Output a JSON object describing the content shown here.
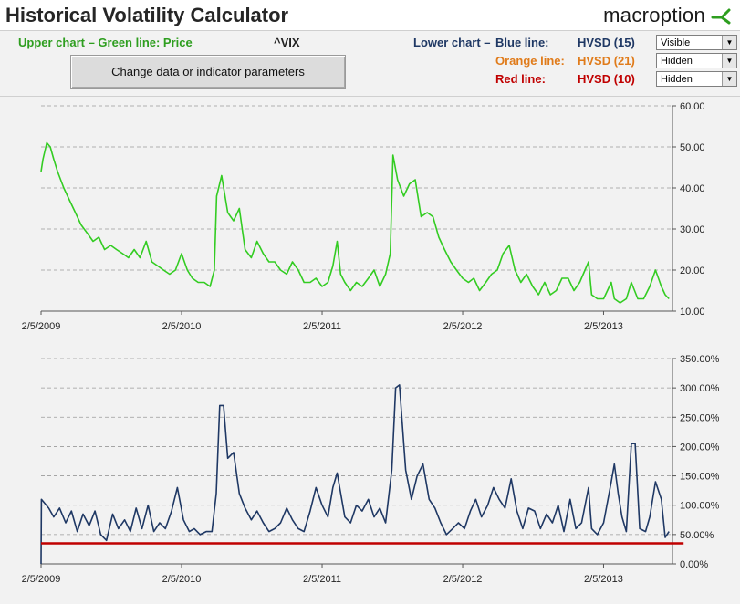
{
  "header": {
    "title": "Historical Volatility Calculator",
    "logo_text": "macroption"
  },
  "controls": {
    "upper_label": "Upper chart – Green line: Price",
    "ticker": "^VIX",
    "button_label": "Change data or indicator parameters",
    "lower_label": "Lower chart –",
    "lines": [
      {
        "label": "Blue line:",
        "indicator": "HVSD (15)",
        "state": "Visible",
        "color": "#1f3864"
      },
      {
        "label": "Orange line:",
        "indicator": "HVSD (21)",
        "state": "Hidden",
        "color": "#e07b1a"
      },
      {
        "label": "Red line:",
        "indicator": "HVSD (10)",
        "state": "Hidden",
        "color": "#c00000"
      }
    ],
    "upper_color": "#2e9e1f"
  },
  "chart_data": [
    {
      "type": "line",
      "series": [
        {
          "color": "#33cc22",
          "points": [
            [
              "2009-02-05",
              44
            ],
            [
              "2009-02-10",
              47
            ],
            [
              "2009-02-20",
              51
            ],
            [
              "2009-03-01",
              50
            ],
            [
              "2009-03-10",
              47
            ],
            [
              "2009-03-20",
              44
            ],
            [
              "2009-04-05",
              40
            ],
            [
              "2009-04-20",
              37
            ],
            [
              "2009-05-05",
              34
            ],
            [
              "2009-05-20",
              31
            ],
            [
              "2009-06-05",
              29
            ],
            [
              "2009-06-20",
              27
            ],
            [
              "2009-07-05",
              28
            ],
            [
              "2009-07-20",
              25
            ],
            [
              "2009-08-05",
              26
            ],
            [
              "2009-08-20",
              25
            ],
            [
              "2009-09-05",
              24
            ],
            [
              "2009-09-20",
              23
            ],
            [
              "2009-10-05",
              25
            ],
            [
              "2009-10-20",
              23
            ],
            [
              "2009-11-05",
              27
            ],
            [
              "2009-11-20",
              22
            ],
            [
              "2009-12-05",
              21
            ],
            [
              "2009-12-20",
              20
            ],
            [
              "2010-01-05",
              19
            ],
            [
              "2010-01-20",
              20
            ],
            [
              "2010-02-05",
              24
            ],
            [
              "2010-02-20",
              20
            ],
            [
              "2010-03-05",
              18
            ],
            [
              "2010-03-20",
              17
            ],
            [
              "2010-04-05",
              17
            ],
            [
              "2010-04-20",
              16
            ],
            [
              "2010-05-01",
              20
            ],
            [
              "2010-05-07",
              38
            ],
            [
              "2010-05-20",
              43
            ],
            [
              "2010-06-05",
              34
            ],
            [
              "2010-06-20",
              32
            ],
            [
              "2010-07-05",
              35
            ],
            [
              "2010-07-20",
              25
            ],
            [
              "2010-08-05",
              23
            ],
            [
              "2010-08-20",
              27
            ],
            [
              "2010-09-05",
              24
            ],
            [
              "2010-09-20",
              22
            ],
            [
              "2010-10-05",
              22
            ],
            [
              "2010-10-20",
              20
            ],
            [
              "2010-11-05",
              19
            ],
            [
              "2010-11-20",
              22
            ],
            [
              "2010-12-05",
              20
            ],
            [
              "2010-12-20",
              17
            ],
            [
              "2011-01-05",
              17
            ],
            [
              "2011-01-20",
              18
            ],
            [
              "2011-02-05",
              16
            ],
            [
              "2011-02-20",
              17
            ],
            [
              "2011-03-05",
              21
            ],
            [
              "2011-03-16",
              27
            ],
            [
              "2011-03-25",
              19
            ],
            [
              "2011-04-05",
              17
            ],
            [
              "2011-04-20",
              15
            ],
            [
              "2011-05-05",
              17
            ],
            [
              "2011-05-20",
              16
            ],
            [
              "2011-06-05",
              18
            ],
            [
              "2011-06-20",
              20
            ],
            [
              "2011-07-05",
              16
            ],
            [
              "2011-07-20",
              19
            ],
            [
              "2011-08-01",
              24
            ],
            [
              "2011-08-08",
              48
            ],
            [
              "2011-08-20",
              42
            ],
            [
              "2011-09-05",
              38
            ],
            [
              "2011-09-20",
              41
            ],
            [
              "2011-10-05",
              42
            ],
            [
              "2011-10-20",
              33
            ],
            [
              "2011-11-05",
              34
            ],
            [
              "2011-11-20",
              33
            ],
            [
              "2011-12-05",
              28
            ],
            [
              "2011-12-20",
              25
            ],
            [
              "2012-01-05",
              22
            ],
            [
              "2012-01-20",
              20
            ],
            [
              "2012-02-05",
              18
            ],
            [
              "2012-02-20",
              17
            ],
            [
              "2012-03-05",
              18
            ],
            [
              "2012-03-20",
              15
            ],
            [
              "2012-04-05",
              17
            ],
            [
              "2012-04-20",
              19
            ],
            [
              "2012-05-05",
              20
            ],
            [
              "2012-05-20",
              24
            ],
            [
              "2012-06-05",
              26
            ],
            [
              "2012-06-20",
              20
            ],
            [
              "2012-07-05",
              17
            ],
            [
              "2012-07-20",
              19
            ],
            [
              "2012-08-05",
              16
            ],
            [
              "2012-08-20",
              14
            ],
            [
              "2012-09-05",
              17
            ],
            [
              "2012-09-20",
              14
            ],
            [
              "2012-10-05",
              15
            ],
            [
              "2012-10-20",
              18
            ],
            [
              "2012-11-05",
              18
            ],
            [
              "2012-11-20",
              15
            ],
            [
              "2012-12-05",
              17
            ],
            [
              "2012-12-28",
              22
            ],
            [
              "2013-01-05",
              14
            ],
            [
              "2013-01-20",
              13
            ],
            [
              "2013-02-05",
              13
            ],
            [
              "2013-02-25",
              17
            ],
            [
              "2013-03-05",
              13
            ],
            [
              "2013-03-20",
              12
            ],
            [
              "2013-04-05",
              13
            ],
            [
              "2013-04-18",
              17
            ],
            [
              "2013-05-05",
              13
            ],
            [
              "2013-05-20",
              13
            ],
            [
              "2013-06-05",
              16
            ],
            [
              "2013-06-20",
              20
            ],
            [
              "2013-07-05",
              16
            ],
            [
              "2013-07-15",
              14
            ],
            [
              "2013-07-25",
              13
            ]
          ]
        }
      ],
      "ylim": [
        10,
        60
      ],
      "yticks": [
        "60.00",
        "50.00",
        "40.00",
        "30.00",
        "20.00",
        "10.00"
      ],
      "xticks": [
        "2/5/2009",
        "2/5/2010",
        "2/5/2011",
        "2/5/2012",
        "2/5/2013"
      ],
      "grid": "horizontal-dashed"
    },
    {
      "type": "line",
      "series": [
        {
          "color": "#1f3864",
          "points": [
            [
              "2009-02-05",
              0
            ],
            [
              "2009-02-06",
              110
            ],
            [
              "2009-02-25",
              95
            ],
            [
              "2009-03-10",
              80
            ],
            [
              "2009-03-25",
              95
            ],
            [
              "2009-04-10",
              70
            ],
            [
              "2009-04-25",
              90
            ],
            [
              "2009-05-10",
              55
            ],
            [
              "2009-05-25",
              85
            ],
            [
              "2009-06-10",
              65
            ],
            [
              "2009-06-25",
              90
            ],
            [
              "2009-07-10",
              50
            ],
            [
              "2009-07-25",
              40
            ],
            [
              "2009-08-10",
              85
            ],
            [
              "2009-08-25",
              60
            ],
            [
              "2009-09-10",
              75
            ],
            [
              "2009-09-25",
              55
            ],
            [
              "2009-10-10",
              95
            ],
            [
              "2009-10-25",
              60
            ],
            [
              "2009-11-10",
              100
            ],
            [
              "2009-11-25",
              55
            ],
            [
              "2009-12-10",
              70
            ],
            [
              "2009-12-25",
              60
            ],
            [
              "2010-01-10",
              90
            ],
            [
              "2010-01-25",
              130
            ],
            [
              "2010-02-10",
              75
            ],
            [
              "2010-02-25",
              55
            ],
            [
              "2010-03-10",
              60
            ],
            [
              "2010-03-25",
              50
            ],
            [
              "2010-04-10",
              55
            ],
            [
              "2010-04-25",
              55
            ],
            [
              "2010-05-06",
              120
            ],
            [
              "2010-05-15",
              270
            ],
            [
              "2010-05-25",
              270
            ],
            [
              "2010-06-05",
              180
            ],
            [
              "2010-06-20",
              190
            ],
            [
              "2010-07-05",
              120
            ],
            [
              "2010-07-20",
              95
            ],
            [
              "2010-08-05",
              75
            ],
            [
              "2010-08-20",
              90
            ],
            [
              "2010-09-05",
              70
            ],
            [
              "2010-09-20",
              55
            ],
            [
              "2010-10-05",
              60
            ],
            [
              "2010-10-20",
              70
            ],
            [
              "2010-11-05",
              95
            ],
            [
              "2010-11-20",
              75
            ],
            [
              "2010-12-05",
              60
            ],
            [
              "2010-12-20",
              55
            ],
            [
              "2011-01-05",
              90
            ],
            [
              "2011-01-20",
              130
            ],
            [
              "2011-02-05",
              100
            ],
            [
              "2011-02-20",
              80
            ],
            [
              "2011-03-05",
              130
            ],
            [
              "2011-03-16",
              155
            ],
            [
              "2011-04-05",
              80
            ],
            [
              "2011-04-20",
              70
            ],
            [
              "2011-05-05",
              100
            ],
            [
              "2011-05-20",
              90
            ],
            [
              "2011-06-05",
              110
            ],
            [
              "2011-06-20",
              80
            ],
            [
              "2011-07-05",
              95
            ],
            [
              "2011-07-20",
              70
            ],
            [
              "2011-08-05",
              160
            ],
            [
              "2011-08-15",
              300
            ],
            [
              "2011-08-25",
              305
            ],
            [
              "2011-09-10",
              160
            ],
            [
              "2011-09-25",
              110
            ],
            [
              "2011-10-10",
              150
            ],
            [
              "2011-10-25",
              170
            ],
            [
              "2011-11-10",
              110
            ],
            [
              "2011-11-25",
              95
            ],
            [
              "2011-12-10",
              70
            ],
            [
              "2011-12-25",
              50
            ],
            [
              "2012-01-10",
              60
            ],
            [
              "2012-01-25",
              70
            ],
            [
              "2012-02-10",
              60
            ],
            [
              "2012-02-25",
              90
            ],
            [
              "2012-03-10",
              110
            ],
            [
              "2012-03-25",
              80
            ],
            [
              "2012-04-10",
              100
            ],
            [
              "2012-04-25",
              130
            ],
            [
              "2012-05-10",
              110
            ],
            [
              "2012-05-25",
              95
            ],
            [
              "2012-06-10",
              145
            ],
            [
              "2012-06-25",
              90
            ],
            [
              "2012-07-10",
              60
            ],
            [
              "2012-07-25",
              95
            ],
            [
              "2012-08-10",
              90
            ],
            [
              "2012-08-25",
              60
            ],
            [
              "2012-09-10",
              85
            ],
            [
              "2012-09-25",
              70
            ],
            [
              "2012-10-10",
              100
            ],
            [
              "2012-10-25",
              55
            ],
            [
              "2012-11-10",
              110
            ],
            [
              "2012-11-25",
              60
            ],
            [
              "2012-12-10",
              70
            ],
            [
              "2012-12-28",
              130
            ],
            [
              "2013-01-05",
              60
            ],
            [
              "2013-01-20",
              50
            ],
            [
              "2013-02-05",
              70
            ],
            [
              "2013-02-25",
              140
            ],
            [
              "2013-03-05",
              170
            ],
            [
              "2013-03-15",
              120
            ],
            [
              "2013-03-25",
              80
            ],
            [
              "2013-04-05",
              55
            ],
            [
              "2013-04-18",
              205
            ],
            [
              "2013-04-28",
              205
            ],
            [
              "2013-05-10",
              60
            ],
            [
              "2013-05-25",
              55
            ],
            [
              "2013-06-05",
              80
            ],
            [
              "2013-06-20",
              140
            ],
            [
              "2013-07-05",
              110
            ],
            [
              "2013-07-15",
              45
            ],
            [
              "2013-07-25",
              55
            ]
          ]
        },
        {
          "color": "#c00000",
          "points": [
            [
              "2009-02-05",
              35
            ],
            [
              "2013-09-01",
              35
            ]
          ]
        }
      ],
      "ylim": [
        0,
        350
      ],
      "yticks": [
        "350.00%",
        "300.00%",
        "250.00%",
        "200.00%",
        "150.00%",
        "100.00%",
        "50.00%",
        "0.00%"
      ],
      "xticks": [
        "2/5/2009",
        "2/5/2010",
        "2/5/2011",
        "2/5/2012",
        "2/5/2013"
      ],
      "grid": "horizontal-dashed"
    }
  ]
}
